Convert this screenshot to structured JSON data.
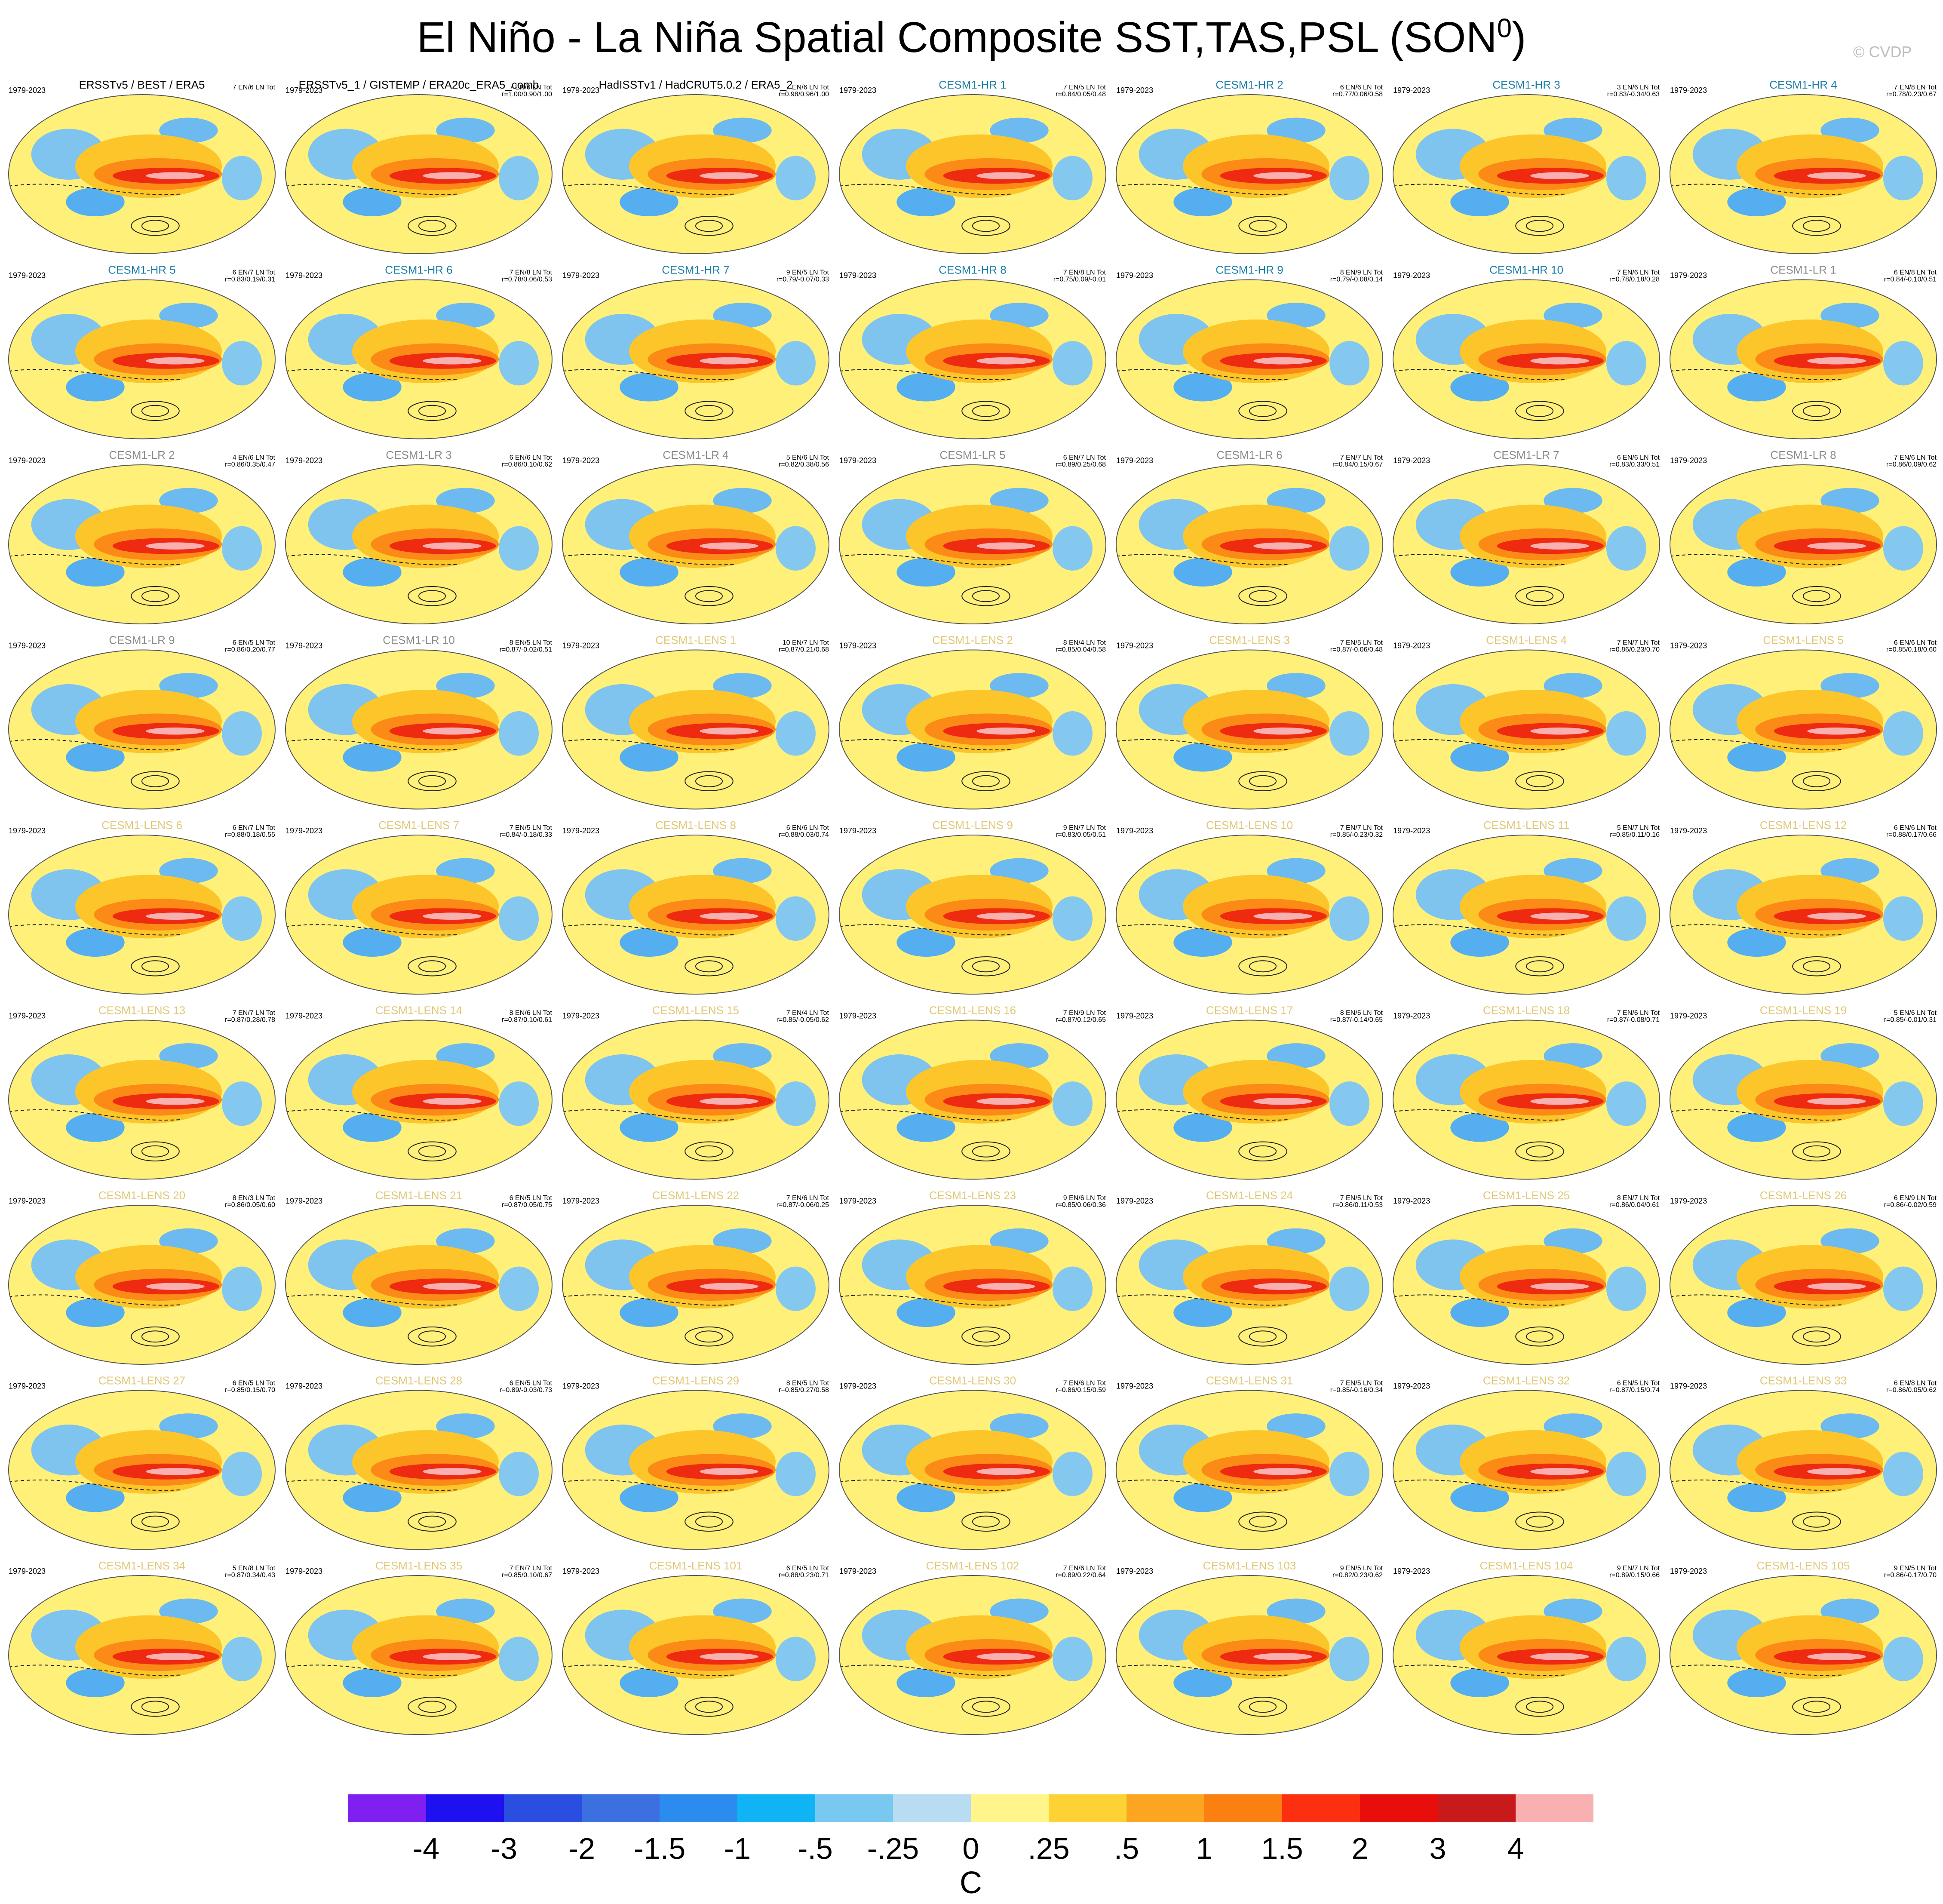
{
  "title": {
    "main": "El Niño - La Niña Spatial Composite SST,TAS,PSL (SON",
    "sup": "0",
    "close": ")"
  },
  "credit": "© CVDP",
  "chart_data": {
    "type": "heatmap",
    "description_note": "",
    "period": "1979-2023",
    "panels": [
      {
        "name": "ERSSTv5 / BEST / ERA5",
        "stats1": "7 EN/6 LN Tot",
        "stats2": "",
        "kind": "obs"
      },
      {
        "name": "ERSSTv5_1 / GISTEMP / ERA20c_ERA5_comb",
        "stats1": "7 EN/6 LN Tot",
        "stats2": "r=1.00/0.90/1.00",
        "kind": "obs"
      },
      {
        "name": "HadISSTv1 / HadCRUT5.0.2 / ERA5_2",
        "stats1": "7 EN/6 LN Tot",
        "stats2": "r=0.98/0.96/1.00",
        "kind": "obs"
      },
      {
        "name": "CESM1-HR 1",
        "stats1": "7 EN/5 LN Tot",
        "stats2": "r=0.84/0.05/0.48",
        "kind": "hr"
      },
      {
        "name": "CESM1-HR 2",
        "stats1": "6 EN/6 LN Tot",
        "stats2": "r=0.77/0.06/0.58",
        "kind": "hr"
      },
      {
        "name": "CESM1-HR 3",
        "stats1": "3 EN/6 LN Tot",
        "stats2": "r=0.83/-0.34/0.63",
        "kind": "hr"
      },
      {
        "name": "CESM1-HR 4",
        "stats1": "7 EN/8 LN Tot",
        "stats2": "r=0.78/0.23/0.67",
        "kind": "hr"
      },
      {
        "name": "CESM1-HR 5",
        "stats1": "6 EN/7 LN Tot",
        "stats2": "r=0.83/0.19/0.31",
        "kind": "hr"
      },
      {
        "name": "CESM1-HR 6",
        "stats1": "7 EN/8 LN Tot",
        "stats2": "r=0.78/0.06/0.53",
        "kind": "hr"
      },
      {
        "name": "CESM1-HR 7",
        "stats1": "9 EN/5 LN Tot",
        "stats2": "r=0.79/-0.07/0.33",
        "kind": "hr"
      },
      {
        "name": "CESM1-HR 8",
        "stats1": "7 EN/8 LN Tot",
        "stats2": "r=0.75/0.09/-0.01",
        "kind": "hr"
      },
      {
        "name": "CESM1-HR 9",
        "stats1": "8 EN/9 LN Tot",
        "stats2": "r=0.79/-0.08/0.14",
        "kind": "hr"
      },
      {
        "name": "CESM1-HR 10",
        "stats1": "7 EN/6 LN Tot",
        "stats2": "r=0.78/0.18/0.28",
        "kind": "hr"
      },
      {
        "name": "CESM1-LR 1",
        "stats1": "6 EN/8 LN Tot",
        "stats2": "r=0.84/-0.10/0.51",
        "kind": "lr"
      },
      {
        "name": "CESM1-LR 2",
        "stats1": "4 EN/6 LN Tot",
        "stats2": "r=0.86/0.35/0.47",
        "kind": "lr"
      },
      {
        "name": "CESM1-LR 3",
        "stats1": "6 EN/6 LN Tot",
        "stats2": "r=0.86/0.10/0.62",
        "kind": "lr"
      },
      {
        "name": "CESM1-LR 4",
        "stats1": "5 EN/6 LN Tot",
        "stats2": "r=0.82/0.38/0.56",
        "kind": "lr"
      },
      {
        "name": "CESM1-LR 5",
        "stats1": "6 EN/7 LN Tot",
        "stats2": "r=0.89/0.25/0.68",
        "kind": "lr"
      },
      {
        "name": "CESM1-LR 6",
        "stats1": "7 EN/7 LN Tot",
        "stats2": "r=0.84/0.15/0.67",
        "kind": "lr"
      },
      {
        "name": "CESM1-LR 7",
        "stats1": "6 EN/6 LN Tot",
        "stats2": "r=0.83/0.33/0.51",
        "kind": "lr"
      },
      {
        "name": "CESM1-LR 8",
        "stats1": "7 EN/6 LN Tot",
        "stats2": "r=0.86/0.09/0.62",
        "kind": "lr"
      },
      {
        "name": "CESM1-LR 9",
        "stats1": "6 EN/5 LN Tot",
        "stats2": "r=0.86/0.20/0.77",
        "kind": "lr"
      },
      {
        "name": "CESM1-LR 10",
        "stats1": "8 EN/5 LN Tot",
        "stats2": "r=0.87/-0.02/0.51",
        "kind": "lr"
      },
      {
        "name": "CESM1-LENS 1",
        "stats1": "10 EN/7 LN Tot",
        "stats2": "r=0.87/0.21/0.68",
        "kind": "lens"
      },
      {
        "name": "CESM1-LENS 2",
        "stats1": "8 EN/4 LN Tot",
        "stats2": "r=0.85/0.04/0.58",
        "kind": "lens"
      },
      {
        "name": "CESM1-LENS 3",
        "stats1": "7 EN/5 LN Tot",
        "stats2": "r=0.87/-0.06/0.48",
        "kind": "lens"
      },
      {
        "name": "CESM1-LENS 4",
        "stats1": "7 EN/7 LN Tot",
        "stats2": "r=0.86/0.23/0.70",
        "kind": "lens"
      },
      {
        "name": "CESM1-LENS 5",
        "stats1": "6 EN/6 LN Tot",
        "stats2": "r=0.85/0.18/0.60",
        "kind": "lens"
      },
      {
        "name": "CESM1-LENS 6",
        "stats1": "6 EN/7 LN Tot",
        "stats2": "r=0.88/0.18/0.55",
        "kind": "lens"
      },
      {
        "name": "CESM1-LENS 7",
        "stats1": "7 EN/5 LN Tot",
        "stats2": "r=0.84/-0.18/0.33",
        "kind": "lens"
      },
      {
        "name": "CESM1-LENS 8",
        "stats1": "6 EN/6 LN Tot",
        "stats2": "r=0.88/0.03/0.74",
        "kind": "lens"
      },
      {
        "name": "CESM1-LENS 9",
        "stats1": "9 EN/7 LN Tot",
        "stats2": "r=0.83/0.05/0.51",
        "kind": "lens"
      },
      {
        "name": "CESM1-LENS 10",
        "stats1": "7 EN/7 LN Tot",
        "stats2": "r=0.85/-0.23/0.32",
        "kind": "lens"
      },
      {
        "name": "CESM1-LENS 11",
        "stats1": "5 EN/7 LN Tot",
        "stats2": "r=0.85/0.11/0.16",
        "kind": "lens"
      },
      {
        "name": "CESM1-LENS 12",
        "stats1": "6 EN/6 LN Tot",
        "stats2": "r=0.88/0.17/0.66",
        "kind": "lens"
      },
      {
        "name": "CESM1-LENS 13",
        "stats1": "7 EN/7 LN Tot",
        "stats2": "r=0.87/0.28/0.78",
        "kind": "lens"
      },
      {
        "name": "CESM1-LENS 14",
        "stats1": "8 EN/6 LN Tot",
        "stats2": "r=0.87/0.10/0.61",
        "kind": "lens"
      },
      {
        "name": "CESM1-LENS 15",
        "stats1": "7 EN/4 LN Tot",
        "stats2": "r=0.85/-0.05/0.62",
        "kind": "lens"
      },
      {
        "name": "CESM1-LENS 16",
        "stats1": "7 EN/9 LN Tot",
        "stats2": "r=0.87/0.12/0.65",
        "kind": "lens"
      },
      {
        "name": "CESM1-LENS 17",
        "stats1": "8 EN/5 LN Tot",
        "stats2": "r=0.87/-0.14/0.65",
        "kind": "lens"
      },
      {
        "name": "CESM1-LENS 18",
        "stats1": "7 EN/6 LN Tot",
        "stats2": "r=0.87/-0.08/0.71",
        "kind": "lens"
      },
      {
        "name": "CESM1-LENS 19",
        "stats1": "5 EN/6 LN Tot",
        "stats2": "r=0.85/-0.01/0.31",
        "kind": "lens"
      },
      {
        "name": "CESM1-LENS 20",
        "stats1": "8 EN/3 LN Tot",
        "stats2": "r=0.86/0.05/0.60",
        "kind": "lens"
      },
      {
        "name": "CESM1-LENS 21",
        "stats1": "6 EN/5 LN Tot",
        "stats2": "r=0.87/0.05/0.75",
        "kind": "lens"
      },
      {
        "name": "CESM1-LENS 22",
        "stats1": "7 EN/6 LN Tot",
        "stats2": "r=0.87/-0.06/0.25",
        "kind": "lens"
      },
      {
        "name": "CESM1-LENS 23",
        "stats1": "9 EN/6 LN Tot",
        "stats2": "r=0.85/0.06/0.36",
        "kind": "lens"
      },
      {
        "name": "CESM1-LENS 24",
        "stats1": "7 EN/5 LN Tot",
        "stats2": "r=0.86/0.11/0.53",
        "kind": "lens"
      },
      {
        "name": "CESM1-LENS 25",
        "stats1": "8 EN/7 LN Tot",
        "stats2": "r=0.86/0.04/0.61",
        "kind": "lens"
      },
      {
        "name": "CESM1-LENS 26",
        "stats1": "6 EN/9 LN Tot",
        "stats2": "r=0.86/-0.02/0.59",
        "kind": "lens"
      },
      {
        "name": "CESM1-LENS 27",
        "stats1": "6 EN/5 LN Tot",
        "stats2": "r=0.85/0.15/0.70",
        "kind": "lens"
      },
      {
        "name": "CESM1-LENS 28",
        "stats1": "6 EN/5 LN Tot",
        "stats2": "r=0.89/-0.03/0.73",
        "kind": "lens"
      },
      {
        "name": "CESM1-LENS 29",
        "stats1": "8 EN/5 LN Tot",
        "stats2": "r=0.85/0.27/0.58",
        "kind": "lens"
      },
      {
        "name": "CESM1-LENS 30",
        "stats1": "7 EN/6 LN Tot",
        "stats2": "r=0.86/0.15/0.59",
        "kind": "lens"
      },
      {
        "name": "CESM1-LENS 31",
        "stats1": "7 EN/5 LN Tot",
        "stats2": "r=0.85/-0.16/0.34",
        "kind": "lens"
      },
      {
        "name": "CESM1-LENS 32",
        "stats1": "6 EN/5 LN Tot",
        "stats2": "r=0.87/0.15/0.74",
        "kind": "lens"
      },
      {
        "name": "CESM1-LENS 33",
        "stats1": "6 EN/8 LN Tot",
        "stats2": "r=0.86/0.05/0.62",
        "kind": "lens"
      },
      {
        "name": "CESM1-LENS 34",
        "stats1": "5 EN/8 LN Tot",
        "stats2": "r=0.87/0.34/0.43",
        "kind": "lens"
      },
      {
        "name": "CESM1-LENS 35",
        "stats1": "7 EN/7 LN Tot",
        "stats2": "r=0.85/0.10/0.67",
        "kind": "lens"
      },
      {
        "name": "CESM1-LENS 101",
        "stats1": "6 EN/5 LN Tot",
        "stats2": "r=0.88/0.23/0.71",
        "kind": "lens"
      },
      {
        "name": "CESM1-LENS 102",
        "stats1": "7 EN/6 LN Tot",
        "stats2": "r=0.89/0.22/0.64",
        "kind": "lens"
      },
      {
        "name": "CESM1-LENS 103",
        "stats1": "9 EN/5 LN Tot",
        "stats2": "r=0.82/0.23/0.62",
        "kind": "lens"
      },
      {
        "name": "CESM1-LENS 104",
        "stats1": "9 EN/7 LN Tot",
        "stats2": "r=0.89/0.15/0.66",
        "kind": "lens"
      },
      {
        "name": "CESM1-LENS 105",
        "stats1": "9 EN/5 LN Tot",
        "stats2": "r=0.86/-0.17/0.70",
        "kind": "lens"
      }
    ],
    "colorbar": {
      "unit": "C",
      "ticks": [
        "-4",
        "-3",
        "-2",
        "-1.5",
        "-1",
        "-.5",
        "-.25",
        "0",
        ".25",
        ".5",
        "1",
        "1.5",
        "2",
        "3",
        "4"
      ],
      "colors": [
        "#7f1ff0",
        "#1f10f0",
        "#2a4fe0",
        "#3c6fe0",
        "#2b8bee",
        "#10b4f5",
        "#78c8f0",
        "#b8dcf2",
        "#fff58a",
        "#fcd235",
        "#fca521",
        "#fc7f12",
        "#fc3010",
        "#e80e0c",
        "#c81a1a",
        "#f8b0b0"
      ]
    },
    "title_colors": {
      "obs": "#000000",
      "hr": "#1d7fa8",
      "lr": "#8c8c8c",
      "lens": "#e0c878"
    }
  }
}
